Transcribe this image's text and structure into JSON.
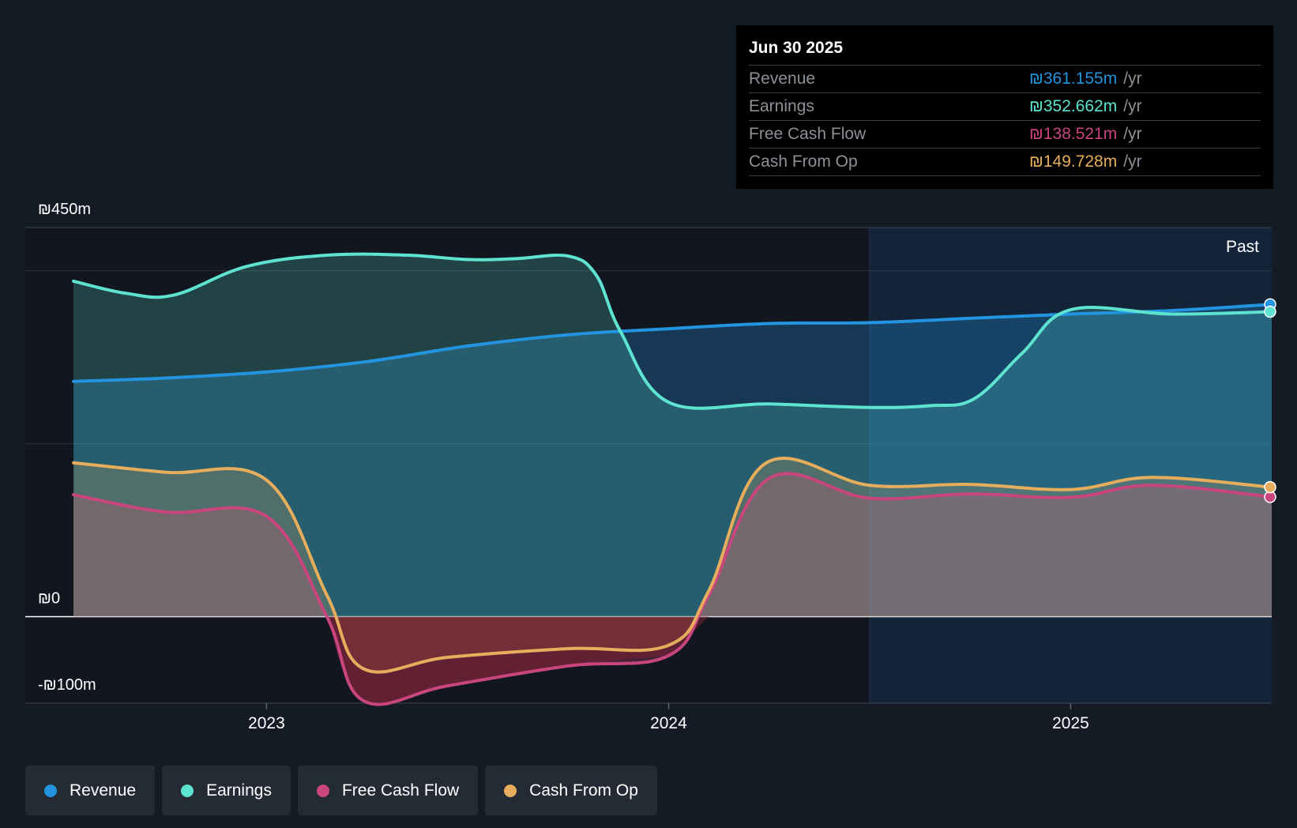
{
  "chart_data": {
    "type": "area",
    "currency": "₪",
    "y_ticks": [
      {
        "value": 450,
        "label": "₪450m"
      },
      {
        "value": 0,
        "label": "₪0"
      },
      {
        "value": -100,
        "label": "-₪100m"
      }
    ],
    "ylim": [
      -100,
      450
    ],
    "x_ticks": [
      {
        "value": 2023.0,
        "label": "2023"
      },
      {
        "value": 2024.0,
        "label": "2024"
      },
      {
        "value": 2025.0,
        "label": "2025"
      }
    ],
    "xlim": [
      2022.4,
      2025.5
    ],
    "past_start": 2024.5,
    "past_label": "Past",
    "series": [
      {
        "name": "Revenue",
        "color": "#2394df",
        "points": [
          [
            2022.52,
            272
          ],
          [
            2022.75,
            276
          ],
          [
            2023.0,
            283
          ],
          [
            2023.25,
            295
          ],
          [
            2023.5,
            313
          ],
          [
            2023.75,
            326
          ],
          [
            2024.0,
            333
          ],
          [
            2024.25,
            339
          ],
          [
            2024.5,
            340
          ],
          [
            2024.75,
            345
          ],
          [
            2025.0,
            350
          ],
          [
            2025.25,
            354
          ],
          [
            2025.5,
            361.155
          ]
        ]
      },
      {
        "name": "Earnings",
        "color": "#5ee3d0",
        "points": [
          [
            2022.52,
            388
          ],
          [
            2022.65,
            374
          ],
          [
            2022.77,
            372
          ],
          [
            2022.95,
            405
          ],
          [
            2023.15,
            418
          ],
          [
            2023.35,
            418
          ],
          [
            2023.5,
            413
          ],
          [
            2023.62,
            414
          ],
          [
            2023.75,
            417
          ],
          [
            2023.82,
            395
          ],
          [
            2023.88,
            330
          ],
          [
            2024.0,
            248
          ],
          [
            2024.25,
            246
          ],
          [
            2024.5,
            242
          ],
          [
            2024.65,
            244
          ],
          [
            2024.76,
            252
          ],
          [
            2024.88,
            305
          ],
          [
            2025.0,
            355
          ],
          [
            2025.25,
            350
          ],
          [
            2025.5,
            352.662
          ]
        ]
      },
      {
        "name": "Free Cash Flow",
        "color": "#c9457e",
        "points": [
          [
            2022.52,
            141
          ],
          [
            2022.75,
            121
          ],
          [
            2023.0,
            116
          ],
          [
            2023.15,
            0
          ],
          [
            2023.24,
            -97
          ],
          [
            2023.45,
            -80
          ],
          [
            2023.75,
            -57
          ],
          [
            2024.0,
            -45
          ],
          [
            2024.1,
            25
          ],
          [
            2024.25,
            160
          ],
          [
            2024.5,
            137
          ],
          [
            2024.75,
            142
          ],
          [
            2025.0,
            138
          ],
          [
            2025.2,
            152
          ],
          [
            2025.5,
            138.521
          ]
        ]
      },
      {
        "name": "Cash From Op",
        "color": "#e6ad5c",
        "points": [
          [
            2022.52,
            178
          ],
          [
            2022.75,
            167
          ],
          [
            2023.0,
            158
          ],
          [
            2023.15,
            25
          ],
          [
            2023.24,
            -60
          ],
          [
            2023.45,
            -47
          ],
          [
            2023.75,
            -37
          ],
          [
            2024.0,
            -33
          ],
          [
            2024.1,
            30
          ],
          [
            2024.24,
            177
          ],
          [
            2024.5,
            152
          ],
          [
            2024.75,
            153
          ],
          [
            2025.0,
            147
          ],
          [
            2025.2,
            161
          ],
          [
            2025.5,
            149.728
          ]
        ]
      }
    ]
  },
  "tooltip": {
    "date": "Jun 30 2025",
    "rows": [
      {
        "name": "Revenue",
        "value": "₪361.155m",
        "unit": "/yr",
        "color": "#2394df"
      },
      {
        "name": "Earnings",
        "value": "₪352.662m",
        "unit": "/yr",
        "color": "#5ee3d0"
      },
      {
        "name": "Free Cash Flow",
        "value": "₪138.521m",
        "unit": "/yr",
        "color": "#c9457e"
      },
      {
        "name": "Cash From Op",
        "value": "₪149.728m",
        "unit": "/yr",
        "color": "#e6ad5c"
      }
    ]
  },
  "legend": [
    {
      "label": "Revenue",
      "color": "#2394df"
    },
    {
      "label": "Earnings",
      "color": "#5ee3d0"
    },
    {
      "label": "Free Cash Flow",
      "color": "#c9457e"
    },
    {
      "label": "Cash From Op",
      "color": "#e6ad5c"
    }
  ]
}
